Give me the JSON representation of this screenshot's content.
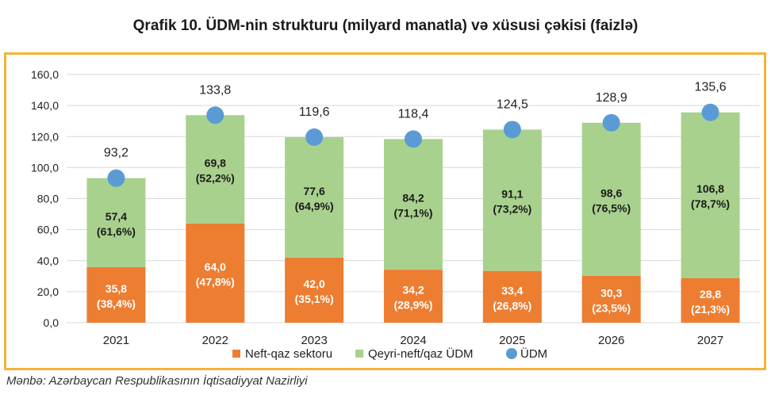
{
  "chart_title": "Qrafik 10. ÜDM-nin strukturu (milyard manatla) və xüsusi çəkisi (faizlə)",
  "source_note": "Mənbə: Azərbaycan Respublikasının İqtisadiyyat Nazirliyi",
  "colors": {
    "oil_gas": "#ed7d31",
    "non_oil": "#a9d18e",
    "gdp_marker": "#5b9bd5",
    "frame": "#f5b335",
    "grid": "#d9d9d9"
  },
  "chart_data": {
    "type": "bar",
    "stacked": true,
    "categories": [
      "2021",
      "2022",
      "2023",
      "2024",
      "2025",
      "2026",
      "2027"
    ],
    "ylim": [
      0,
      160
    ],
    "yticks": [
      0,
      20,
      40,
      60,
      80,
      100,
      120,
      140,
      160
    ],
    "ytick_labels": [
      "0,0",
      "20,0",
      "40,0",
      "60,0",
      "80,0",
      "100,0",
      "120,0",
      "140,0",
      "160,0"
    ],
    "grid": true,
    "legend_position": "bottom",
    "series": [
      {
        "name": "Neft-qaz sektoru",
        "kind": "bar",
        "values": [
          35.8,
          64.0,
          42.0,
          34.2,
          33.4,
          30.3,
          28.8
        ],
        "labels": [
          "35,8",
          "64,0",
          "42,0",
          "34,2",
          "33,4",
          "30,3",
          "28,8"
        ],
        "shares": [
          "(38,4%)",
          "(47,8%)",
          "(35,1%)",
          "(28,9%)",
          "(26,8%)",
          "(23,5%)",
          "(21,3%)"
        ]
      },
      {
        "name": "Qeyri-neft/qaz ÜDM",
        "kind": "bar",
        "values": [
          57.4,
          69.8,
          77.6,
          84.2,
          91.1,
          98.6,
          106.8
        ],
        "labels": [
          "57,4",
          "69,8",
          "77,6",
          "84,2",
          "91,1",
          "98,6",
          "106,8"
        ],
        "shares": [
          "(61,6%)",
          "(52,2%)",
          "(64,9%)",
          "(71,1%)",
          "(73,2%)",
          "(76,5%)",
          "(78,7%)"
        ]
      },
      {
        "name": "ÜDM",
        "kind": "marker",
        "values": [
          93.2,
          133.8,
          119.6,
          118.4,
          124.5,
          128.9,
          135.6
        ],
        "labels": [
          "93,2",
          "133,8",
          "119,6",
          "118,4",
          "124,5",
          "128,9",
          "135,6"
        ]
      }
    ]
  }
}
